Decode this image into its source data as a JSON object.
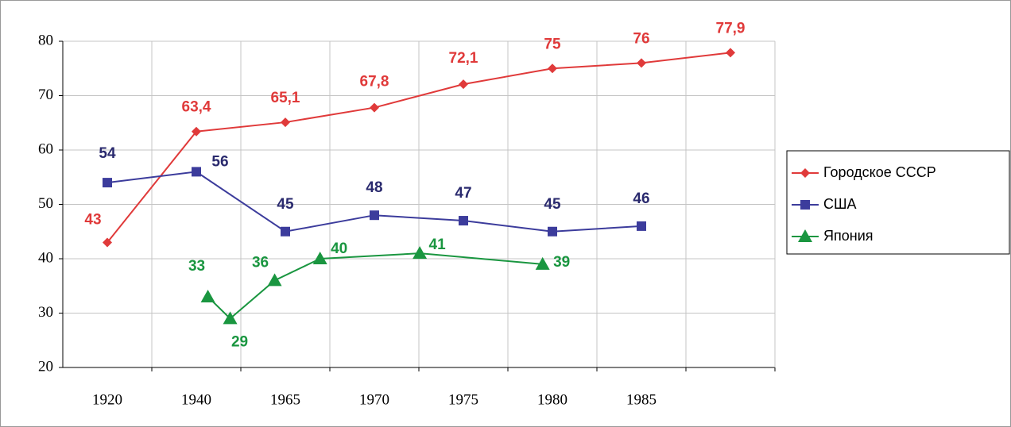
{
  "chart_data": {
    "type": "line",
    "categories": [
      "1920",
      "1940",
      "1965",
      "1970",
      "1975",
      "1980",
      "1985",
      null
    ],
    "ylim": [
      20,
      80
    ],
    "yticks": [
      20,
      30,
      40,
      50,
      60,
      70,
      80
    ],
    "grid": true,
    "legend": "right",
    "series": [
      {
        "name": "Городское СССР",
        "color": "#e03a3a",
        "marker": "diamond",
        "values": [
          43,
          63.4,
          65.1,
          67.8,
          72.1,
          75,
          76,
          77.9
        ],
        "value_labels": [
          "43",
          "63,4",
          "65,1",
          "67,8",
          "72,1",
          "75",
          "76",
          "77,9"
        ]
      },
      {
        "name": "США",
        "color": "#3c3c9c",
        "label_color": "#2a2a6e",
        "marker": "square",
        "values": [
          54,
          56,
          45,
          48,
          47,
          45,
          46,
          null
        ]
      },
      {
        "name": "Япония",
        "color": "#1a9640",
        "marker": "triangle",
        "x": [
          1.13,
          1.38,
          1.88,
          2.39,
          3.51,
          4.89
        ],
        "values": [
          33,
          29,
          36,
          40,
          41,
          39
        ]
      }
    ]
  }
}
